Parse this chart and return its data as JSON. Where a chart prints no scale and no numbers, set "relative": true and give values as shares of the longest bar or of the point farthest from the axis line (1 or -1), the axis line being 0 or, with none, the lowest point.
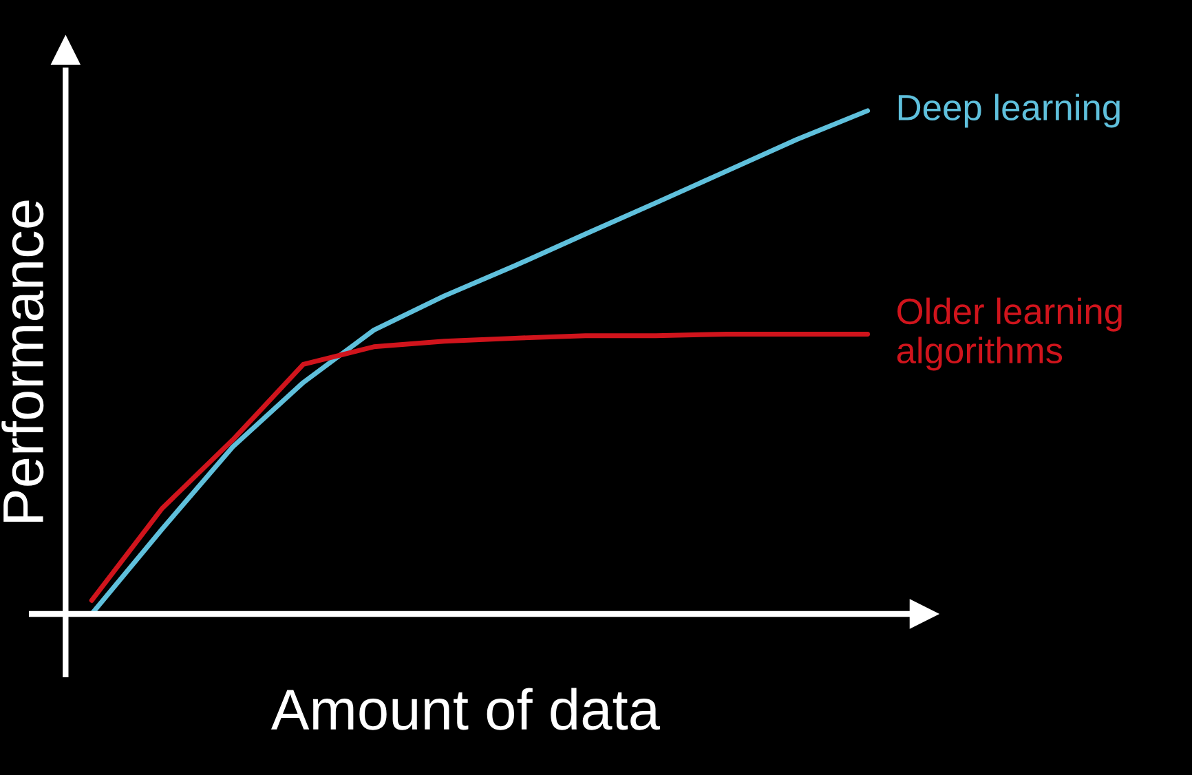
{
  "chart_data": {
    "type": "line",
    "relative": true,
    "xlabel": "Amount of data",
    "ylabel": "Performance",
    "categories": [
      null,
      null,
      null,
      null,
      null,
      null,
      null,
      null,
      null,
      null,
      null,
      null
    ],
    "legend": false,
    "marker": "none",
    "line_style": "solid",
    "series": [
      {
        "name": "Deep learning",
        "color": "#5fc0dc",
        "values": [
          0,
          0.169,
          0.332,
          0.46,
          0.564,
          0.632,
          0.692,
          0.755,
          0.817,
          0.88,
          0.943,
          1.0
        ]
      },
      {
        "name": "Older learning\nalgorithms",
        "color": "#d0141c",
        "values": [
          0.027,
          0.21,
          0.346,
          0.496,
          0.531,
          0.542,
          0.548,
          0.553,
          0.553,
          0.556,
          0.556,
          0.556
        ]
      }
    ]
  }
}
